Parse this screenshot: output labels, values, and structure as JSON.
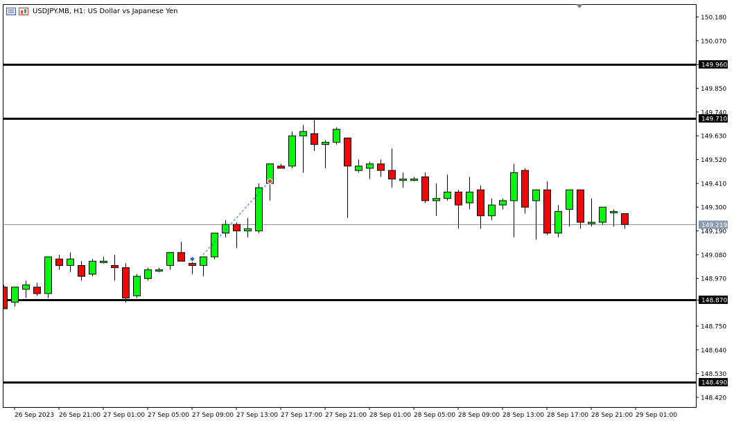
{
  "window": {
    "title": "USDJPY.MB, H1:  US Dollar vs Japanese Yen",
    "icons": [
      "chart-menu-icon",
      "chart-type-icon"
    ]
  },
  "chart_data": {
    "type": "candlestick",
    "symbol": "USDJPY.MB",
    "timeframe": "H1",
    "description": "US Dollar vs Japanese Yen",
    "colors": {
      "bull": "#00ff00",
      "bear": "#ff0000",
      "outline": "#000000",
      "bid_line": "#8a9bb0",
      "hline": "#000000",
      "trend": "#1e5fd8"
    },
    "ylim": [
      148.375,
      150.236
    ],
    "y_ticks": [
      "150.180",
      "150.070",
      "149.960",
      "149.850",
      "149.740",
      "149.630",
      "149.520",
      "149.410",
      "149.300",
      "149.190",
      "149.080",
      "148.970",
      "148.870",
      "148.750",
      "148.640",
      "148.530",
      "148.420"
    ],
    "x_ticks": [
      {
        "label": "26 Sep 2023",
        "i": 1
      },
      {
        "label": "26 Sep 21:00",
        "i": 5
      },
      {
        "label": "27 Sep 01:00",
        "i": 9
      },
      {
        "label": "27 Sep 05:00",
        "i": 13
      },
      {
        "label": "27 Sep 09:00",
        "i": 17
      },
      {
        "label": "27 Sep 13:00",
        "i": 21
      },
      {
        "label": "27 Sep 17:00",
        "i": 25
      },
      {
        "label": "27 Sep 21:00",
        "i": 29
      },
      {
        "label": "28 Sep 01:00",
        "i": 33
      },
      {
        "label": "28 Sep 05:00",
        "i": 37
      },
      {
        "label": "28 Sep 09:00",
        "i": 41
      },
      {
        "label": "28 Sep 13:00",
        "i": 45
      },
      {
        "label": "28 Sep 17:00",
        "i": 49
      },
      {
        "label": "28 Sep 21:00",
        "i": 53
      },
      {
        "label": "29 Sep 01:00",
        "i": 57
      }
    ],
    "horizontal_lines": [
      149.96,
      149.71,
      148.87,
      148.49
    ],
    "horizontal_line_labels": [
      "149.960",
      "149.710",
      "148.870",
      "148.490"
    ],
    "bid": 149.219,
    "bid_label": "149.219",
    "candles": [
      {
        "o": 148.93,
        "h": 148.94,
        "l": 148.83,
        "c": 148.83
      },
      {
        "o": 148.86,
        "h": 148.93,
        "l": 148.84,
        "c": 148.93
      },
      {
        "o": 148.92,
        "h": 148.96,
        "l": 148.88,
        "c": 148.94
      },
      {
        "o": 148.93,
        "h": 148.95,
        "l": 148.89,
        "c": 148.9
      },
      {
        "o": 148.9,
        "h": 149.07,
        "l": 148.88,
        "c": 149.07
      },
      {
        "o": 149.06,
        "h": 149.08,
        "l": 149.01,
        "c": 149.03
      },
      {
        "o": 149.03,
        "h": 149.09,
        "l": 149.0,
        "c": 149.06
      },
      {
        "o": 149.03,
        "h": 149.05,
        "l": 148.96,
        "c": 148.98
      },
      {
        "o": 148.99,
        "h": 149.06,
        "l": 148.98,
        "c": 149.05
      },
      {
        "o": 149.05,
        "h": 149.07,
        "l": 149.04,
        "c": 149.05
      },
      {
        "o": 149.03,
        "h": 149.08,
        "l": 148.96,
        "c": 149.02
      },
      {
        "o": 149.02,
        "h": 149.04,
        "l": 148.86,
        "c": 148.88
      },
      {
        "o": 148.89,
        "h": 148.99,
        "l": 148.88,
        "c": 148.98
      },
      {
        "o": 148.97,
        "h": 149.02,
        "l": 148.96,
        "c": 149.01
      },
      {
        "o": 149.01,
        "h": 149.02,
        "l": 149.0,
        "c": 149.01
      },
      {
        "o": 149.03,
        "h": 149.09,
        "l": 149.01,
        "c": 149.09
      },
      {
        "o": 149.09,
        "h": 149.14,
        "l": 149.05,
        "c": 149.05
      },
      {
        "o": 149.04,
        "h": 149.07,
        "l": 148.99,
        "c": 149.03
      },
      {
        "o": 149.03,
        "h": 149.07,
        "l": 148.98,
        "c": 149.07
      },
      {
        "o": 149.07,
        "h": 149.18,
        "l": 149.06,
        "c": 149.18
      },
      {
        "o": 149.18,
        "h": 149.24,
        "l": 149.16,
        "c": 149.22
      },
      {
        "o": 149.22,
        "h": 149.23,
        "l": 149.11,
        "c": 149.19
      },
      {
        "o": 149.19,
        "h": 149.25,
        "l": 149.16,
        "c": 149.2
      },
      {
        "o": 149.19,
        "h": 149.41,
        "l": 149.18,
        "c": 149.39
      },
      {
        "o": 149.41,
        "h": 149.5,
        "l": 149.33,
        "c": 149.5
      },
      {
        "o": 149.49,
        "h": 149.5,
        "l": 149.48,
        "c": 149.48
      },
      {
        "o": 149.49,
        "h": 149.65,
        "l": 149.48,
        "c": 149.63
      },
      {
        "o": 149.63,
        "h": 149.68,
        "l": 149.46,
        "c": 149.65
      },
      {
        "o": 149.64,
        "h": 149.71,
        "l": 149.56,
        "c": 149.59
      },
      {
        "o": 149.59,
        "h": 149.61,
        "l": 149.48,
        "c": 149.6
      },
      {
        "o": 149.6,
        "h": 149.67,
        "l": 149.59,
        "c": 149.66
      },
      {
        "o": 149.62,
        "h": 149.62,
        "l": 149.25,
        "c": 149.49
      },
      {
        "o": 149.47,
        "h": 149.52,
        "l": 149.46,
        "c": 149.49
      },
      {
        "o": 149.48,
        "h": 149.51,
        "l": 149.43,
        "c": 149.5
      },
      {
        "o": 149.5,
        "h": 149.52,
        "l": 149.44,
        "c": 149.47
      },
      {
        "o": 149.47,
        "h": 149.57,
        "l": 149.39,
        "c": 149.43
      },
      {
        "o": 149.43,
        "h": 149.46,
        "l": 149.39,
        "c": 149.43
      },
      {
        "o": 149.43,
        "h": 149.44,
        "l": 149.42,
        "c": 149.43
      },
      {
        "o": 149.44,
        "h": 149.46,
        "l": 149.32,
        "c": 149.33
      },
      {
        "o": 149.33,
        "h": 149.41,
        "l": 149.26,
        "c": 149.34
      },
      {
        "o": 149.34,
        "h": 149.45,
        "l": 149.33,
        "c": 149.37
      },
      {
        "o": 149.37,
        "h": 149.38,
        "l": 149.2,
        "c": 149.31
      },
      {
        "o": 149.32,
        "h": 149.44,
        "l": 149.29,
        "c": 149.37
      },
      {
        "o": 149.38,
        "h": 149.4,
        "l": 149.2,
        "c": 149.26
      },
      {
        "o": 149.26,
        "h": 149.34,
        "l": 149.24,
        "c": 149.31
      },
      {
        "o": 149.31,
        "h": 149.34,
        "l": 149.29,
        "c": 149.33
      },
      {
        "o": 149.33,
        "h": 149.5,
        "l": 149.16,
        "c": 149.46
      },
      {
        "o": 149.47,
        "h": 149.48,
        "l": 149.27,
        "c": 149.3
      },
      {
        "o": 149.33,
        "h": 149.38,
        "l": 149.15,
        "c": 149.38
      },
      {
        "o": 149.38,
        "h": 149.42,
        "l": 149.17,
        "c": 149.18
      },
      {
        "o": 149.18,
        "h": 149.31,
        "l": 149.16,
        "c": 149.28
      },
      {
        "o": 149.29,
        "h": 149.38,
        "l": 149.21,
        "c": 149.38
      },
      {
        "o": 149.38,
        "h": 149.38,
        "l": 149.2,
        "c": 149.23
      },
      {
        "o": 149.23,
        "h": 149.34,
        "l": 149.21,
        "c": 149.23
      },
      {
        "o": 149.23,
        "h": 149.3,
        "l": 149.22,
        "c": 149.3
      },
      {
        "o": 149.28,
        "h": 149.29,
        "l": 149.21,
        "c": 149.28
      },
      {
        "o": 149.27,
        "h": 149.27,
        "l": 149.2,
        "c": 149.22
      }
    ],
    "trendline": {
      "from": [
        149.08,
        18
      ],
      "to": [
        149.42,
        24
      ]
    },
    "markers": [
      {
        "i": 17,
        "price": 149.06,
        "color": "#1e5fd8",
        "name": "buy-arrow-marker"
      },
      {
        "i": 24,
        "price": 149.42,
        "color": "#e0302a",
        "name": "sell-arrow-marker"
      }
    ]
  }
}
